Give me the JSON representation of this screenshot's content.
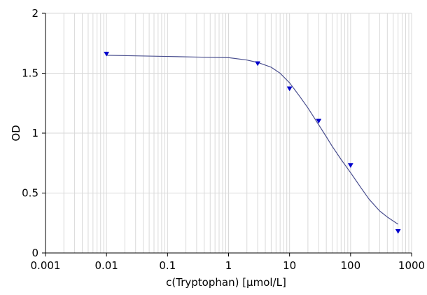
{
  "chart_data": {
    "type": "scatter",
    "xlabel": "c(Tryptophan) [µmol/L]",
    "ylabel": "OD",
    "x_scale": "log",
    "xlim": [
      0.001,
      1000
    ],
    "ylim": [
      0,
      2
    ],
    "x_ticks": [
      {
        "value": 0.001,
        "label": "0.001"
      },
      {
        "value": 0.01,
        "label": "0.01"
      },
      {
        "value": 0.1,
        "label": "0.1"
      },
      {
        "value": 1,
        "label": "1"
      },
      {
        "value": 10,
        "label": "10"
      },
      {
        "value": 100,
        "label": "100"
      },
      {
        "value": 1000,
        "label": "1000"
      }
    ],
    "y_ticks": [
      {
        "value": 0,
        "label": "0"
      },
      {
        "value": 0.5,
        "label": "0.5"
      },
      {
        "value": 1,
        "label": "1"
      },
      {
        "value": 1.5,
        "label": "1.5"
      },
      {
        "value": 2,
        "label": "2"
      }
    ],
    "grid": true,
    "marker": "triangle-down",
    "point_color": "#0000cc",
    "curve_color": "#4a4f8f",
    "grid_color": "#d9d9d9",
    "points": [
      {
        "x": 0.01,
        "y": 1.66
      },
      {
        "x": 3,
        "y": 1.58
      },
      {
        "x": 10,
        "y": 1.37
      },
      {
        "x": 30,
        "y": 1.1
      },
      {
        "x": 100,
        "y": 0.73
      },
      {
        "x": 600,
        "y": 0.18
      }
    ],
    "fit_curve": {
      "x": [
        0.01,
        0.03,
        0.1,
        0.3,
        1,
        2,
        3,
        5,
        7,
        10,
        15,
        20,
        30,
        40,
        50,
        70,
        100,
        150,
        200,
        300,
        400,
        600
      ],
      "y": [
        1.65,
        1.645,
        1.64,
        1.635,
        1.63,
        1.61,
        1.59,
        1.55,
        1.5,
        1.42,
        1.3,
        1.21,
        1.07,
        0.97,
        0.89,
        0.78,
        0.67,
        0.54,
        0.45,
        0.35,
        0.3,
        0.24
      ]
    }
  }
}
